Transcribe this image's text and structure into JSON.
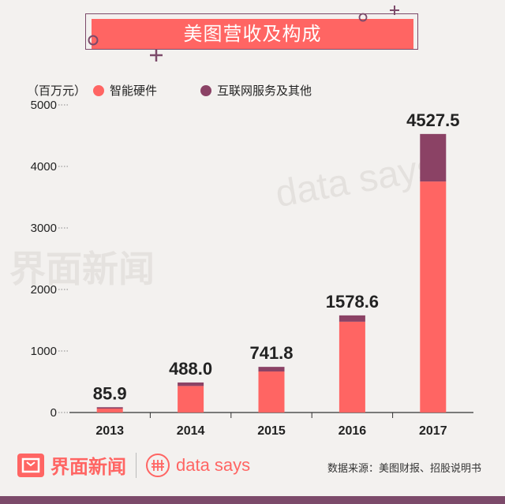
{
  "title": "美图营收及构成",
  "unit": "（百万元）",
  "legend": [
    {
      "label": "智能硬件",
      "color": "#ff6563"
    },
    {
      "label": "互联网服务及其他",
      "color": "#8b4265"
    }
  ],
  "watermarks": {
    "brand": "界面新闻",
    "datasays": "data says"
  },
  "footer": {
    "brand": "界面新闻",
    "datasays": "data says",
    "source": "数据来源：美图财报、招股说明书"
  },
  "colors": {
    "hardware": "#ff6563",
    "internet": "#8b4265",
    "accent": "#7c4a6a"
  },
  "chart_data": {
    "type": "bar",
    "stacked": true,
    "categories": [
      "2013",
      "2014",
      "2015",
      "2016",
      "2017"
    ],
    "series": [
      {
        "name": "智能硬件",
        "values": [
          64,
          431,
          667,
          1476,
          3755
        ]
      },
      {
        "name": "互联网服务及其他",
        "values": [
          21.9,
          57.0,
          74.8,
          102.6,
          772.5
        ]
      }
    ],
    "totals": [
      85.9,
      488.0,
      741.8,
      1578.6,
      4527.5
    ],
    "total_labels": [
      "85.9",
      "488.0",
      "741.8",
      "1578.6",
      "4527.5"
    ],
    "ylim": [
      0,
      5000
    ],
    "yticks": [
      0,
      1000,
      2000,
      3000,
      4000,
      5000
    ],
    "grid": false,
    "legend_position": "top"
  }
}
